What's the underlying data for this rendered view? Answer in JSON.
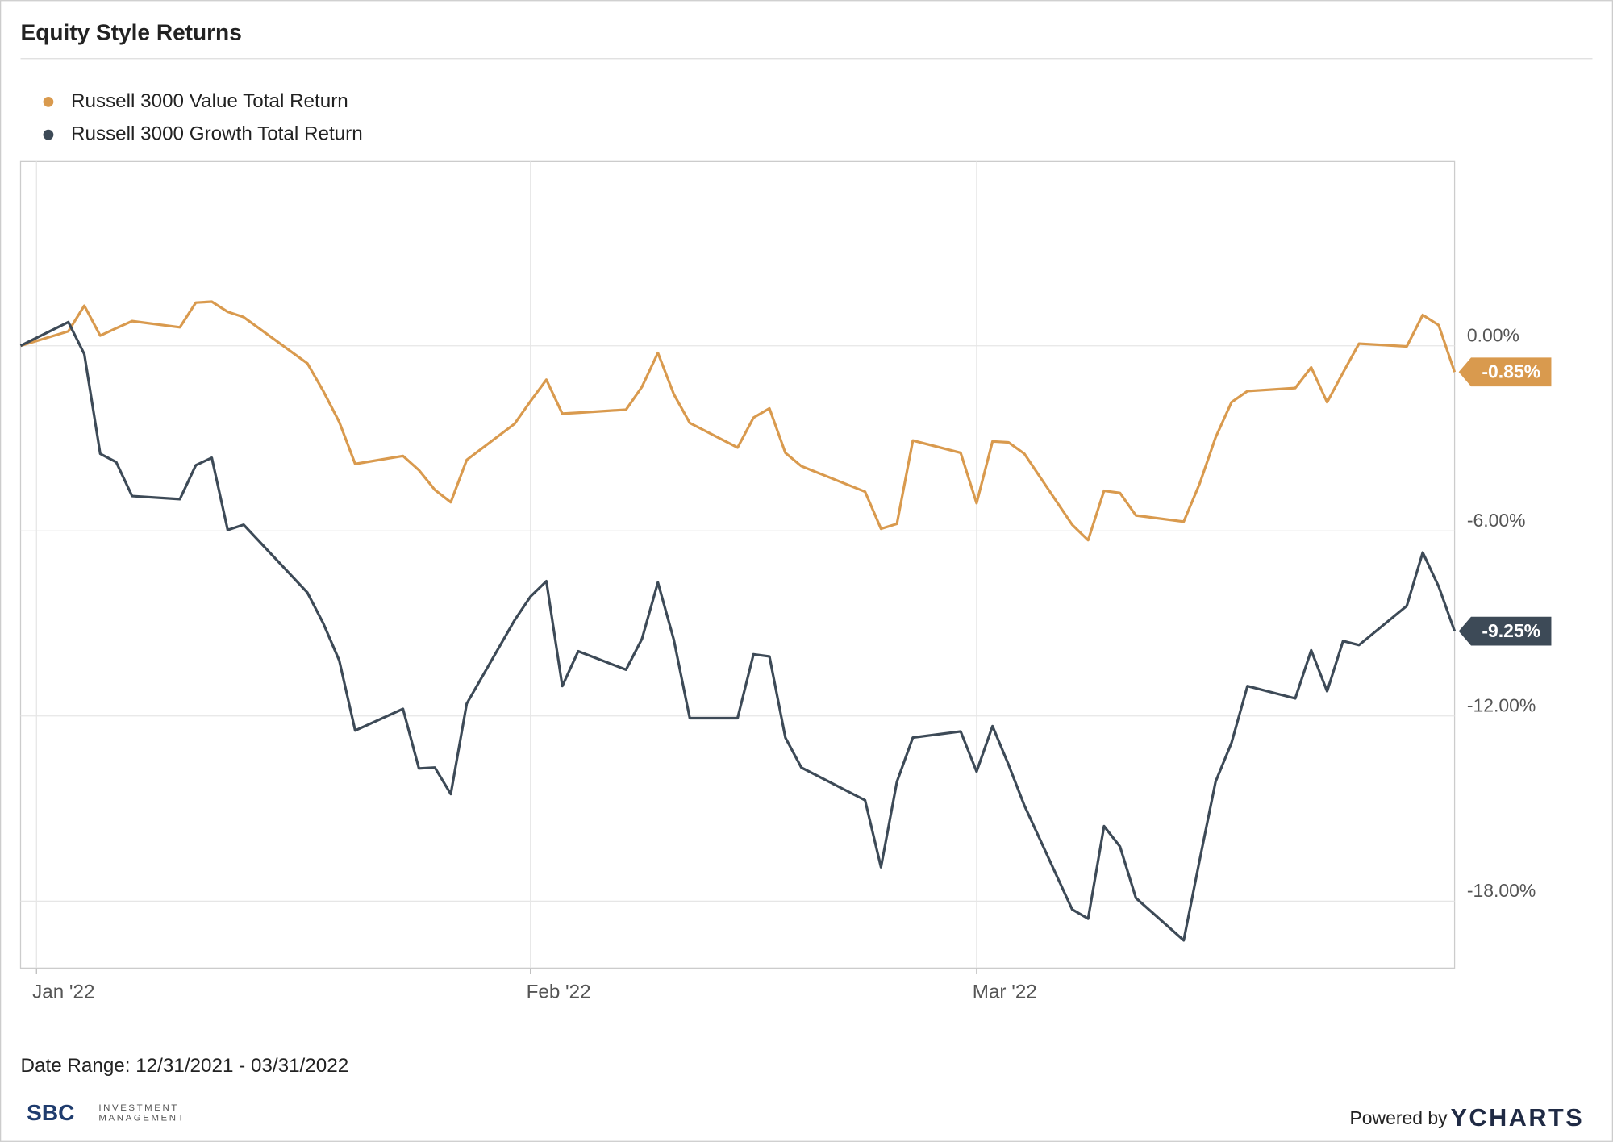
{
  "chart_data": {
    "type": "line",
    "title": "Equity Style Returns",
    "x": [
      0,
      3,
      4,
      5,
      6,
      7,
      10,
      11,
      12,
      13,
      14,
      18,
      19,
      20,
      21,
      24,
      25,
      26,
      27,
      28,
      31,
      32,
      33,
      34,
      35,
      38,
      39,
      40,
      41,
      42,
      45,
      46,
      47,
      48,
      49,
      53,
      54,
      55,
      56,
      59,
      60,
      61,
      62,
      63,
      66,
      67,
      68,
      69,
      70,
      73,
      74,
      75,
      76,
      77,
      80,
      81,
      82,
      83,
      84,
      87,
      88,
      89,
      90
    ],
    "xlim": [
      0,
      90
    ],
    "xticks": [
      {
        "value": 1,
        "label": "Jan '22"
      },
      {
        "value": 32,
        "label": "Feb '22"
      },
      {
        "value": 60,
        "label": "Mar '22"
      }
    ],
    "ylim": [
      -20.17,
      5.97
    ],
    "yticks": [
      {
        "value": 0,
        "label": "0.00%"
      },
      {
        "value": -6,
        "label": "-6.00%"
      },
      {
        "value": -12,
        "label": "-12.00%"
      },
      {
        "value": -18,
        "label": "-18.00%"
      }
    ],
    "grid": true,
    "legend": "top-left",
    "series": [
      {
        "name": "Russell 3000 Value Total Return",
        "color": "#d99a4e",
        "last_label": "-0.85%",
        "values": [
          0,
          0.47,
          1.3,
          0.33,
          0.57,
          0.8,
          0.6,
          1.4,
          1.43,
          1.1,
          0.93,
          -0.57,
          -1.47,
          -2.47,
          -3.83,
          -3.57,
          -4.03,
          -4.67,
          -5.07,
          -3.7,
          -2.53,
          -1.8,
          -1.1,
          -2.2,
          -2.17,
          -2.07,
          -1.33,
          -0.23,
          -1.57,
          -2.5,
          -3.3,
          -2.33,
          -2.03,
          -3.47,
          -3.9,
          -4.73,
          -5.93,
          -5.77,
          -3.07,
          -3.47,
          -5.1,
          -3.1,
          -3.13,
          -3.5,
          -5.8,
          -6.3,
          -4.7,
          -4.77,
          -5.5,
          -5.7,
          -4.47,
          -2.97,
          -1.83,
          -1.47,
          -1.37,
          -0.7,
          -1.83,
          -0.87,
          0.07,
          -0.02,
          1.0,
          0.67,
          -0.85
        ]
      },
      {
        "name": "Russell 3000 Growth Total Return",
        "color": "#3d4a57",
        "last_label": "-9.25%",
        "values": [
          0,
          0.77,
          -0.27,
          -3.5,
          -3.77,
          -4.87,
          -4.97,
          -3.87,
          -3.63,
          -5.97,
          -5.8,
          -8.0,
          -9.0,
          -10.2,
          -12.47,
          -11.77,
          -13.7,
          -13.67,
          -14.53,
          -11.6,
          -8.9,
          -8.13,
          -7.63,
          -11.03,
          -9.9,
          -10.5,
          -9.5,
          -7.67,
          -9.53,
          -12.07,
          -12.07,
          -10.0,
          -10.07,
          -12.7,
          -13.67,
          -14.73,
          -16.9,
          -14.13,
          -12.7,
          -12.5,
          -13.8,
          -12.33,
          -13.57,
          -14.9,
          -18.27,
          -18.57,
          -15.57,
          -16.23,
          -17.9,
          -19.27,
          -16.67,
          -14.13,
          -12.87,
          -11.03,
          -11.43,
          -9.87,
          -11.2,
          -9.57,
          -9.7,
          -8.43,
          -6.7,
          -7.8,
          -9.25
        ]
      }
    ]
  },
  "footer": {
    "date_range": "Date Range: 12/31/2021 - 03/31/2022",
    "logo": "SBC",
    "logo_line1": "INVESTMENT",
    "logo_line2": "MANAGEMENT",
    "powered_by": "Powered by",
    "brand": "YCHARTS"
  }
}
